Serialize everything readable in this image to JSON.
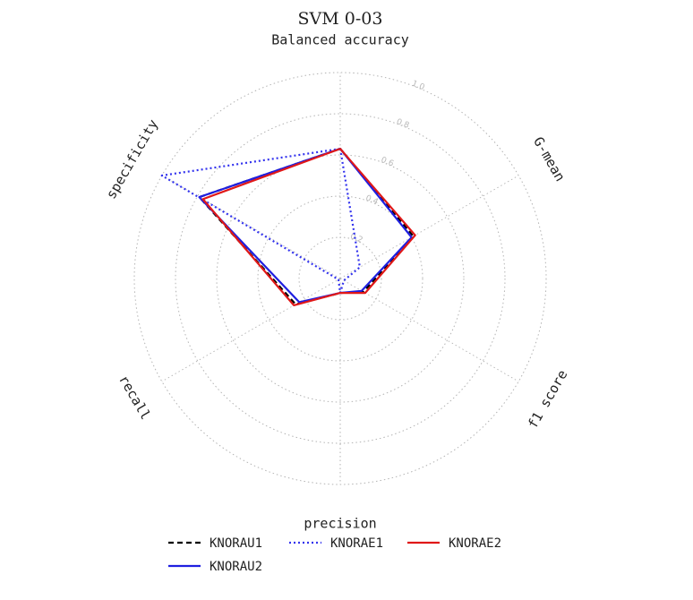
{
  "chart_data": {
    "type": "radar",
    "title": "SVM 0-03",
    "axes": [
      "Balanced accuracy",
      "G-mean",
      "f1 score",
      "precision",
      "recall",
      "specificity"
    ],
    "rmax": 1.0,
    "radial_ticks": [
      0.2,
      0.4,
      0.6,
      0.8,
      1.0
    ],
    "radial_tick_labels": [
      "0.2",
      "0.4",
      "0.6",
      "0.8",
      "1.0"
    ],
    "grid": true,
    "legend_placement": "bottom",
    "series": [
      {
        "name": "KNORAU1",
        "color": "#000000",
        "dash": "dashed",
        "values": [
          0.63,
          0.41,
          0.13,
          0.07,
          0.25,
          0.79
        ]
      },
      {
        "name": "KNORAU2",
        "color": "#1f1fe0",
        "dash": "solid",
        "values": [
          0.63,
          0.4,
          0.12,
          0.07,
          0.23,
          0.79
        ]
      },
      {
        "name": "KNORAE1",
        "color": "#3333ee",
        "dash": "dotted",
        "values": [
          0.63,
          0.11,
          0.02,
          0.07,
          0.01,
          1.0
        ]
      },
      {
        "name": "KNORAE2",
        "color": "#e01818",
        "dash": "solid",
        "values": [
          0.63,
          0.42,
          0.14,
          0.07,
          0.26,
          0.77
        ]
      }
    ]
  }
}
